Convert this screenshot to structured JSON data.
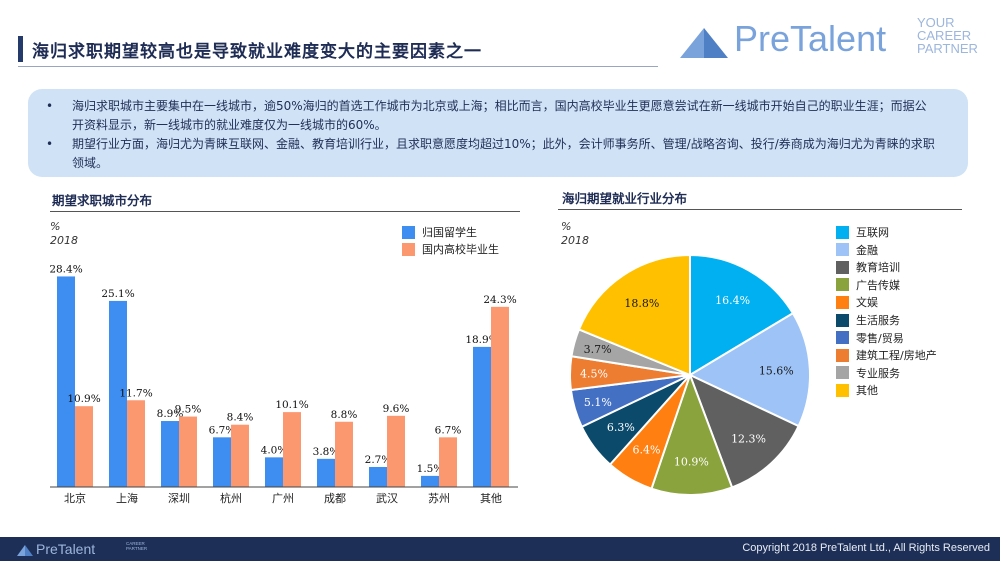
{
  "header": {
    "title": "海归求职期望较高也是导致就业难度变大的主要因素之一",
    "logo_word": "PreTalent",
    "logo_tag": [
      "YOUR",
      "CAREER",
      "PARTNER"
    ]
  },
  "bullets": [
    "海归求职城市主要集中在一线城市，逾50%海归的首选工作城市为北京或上海；相比而言，国内高校毕业生更愿意尝试在新一线城市开始自己的职业生涯；而据公开资料显示，新一线城市的就业难度仅为一线城市的60%。",
    "期望行业方面，海归尤为青睐互联网、金融、教育培训行业，且求职意愿度均超过10%；此外，会计师事务所、管理/战略咨询、投行/券商成为海归尤为青睐的求职领域。"
  ],
  "colors": {
    "returnee": "#3d8ef0",
    "domestic": "#fb9870",
    "brand": "#7aa3dc",
    "navy": "#1e2f57"
  },
  "chart_data": [
    {
      "type": "bar",
      "title": "期望求职城市分布",
      "unit": "%",
      "year": "2018",
      "categories": [
        "北京",
        "上海",
        "深圳",
        "杭州",
        "广州",
        "成都",
        "武汉",
        "苏州",
        "其他"
      ],
      "series": [
        {
          "name": "归国留学生",
          "color": "#3d8ef0",
          "values": [
            28.4,
            25.1,
            8.9,
            6.7,
            4.0,
            3.8,
            2.7,
            1.5,
            18.9
          ]
        },
        {
          "name": "国内高校毕业生",
          "color": "#fb9870",
          "values": [
            10.9,
            11.7,
            9.5,
            8.4,
            10.1,
            8.8,
            9.6,
            6.7,
            24.3
          ]
        }
      ],
      "ylim": [
        0,
        29
      ],
      "legend": "top-right",
      "grid": false
    },
    {
      "type": "pie",
      "title": "海归期望就业行业分布",
      "unit": "%",
      "year": "2018",
      "labels": [
        "互联网",
        "金融",
        "教育培训",
        "广告传媒",
        "文娱",
        "生活服务",
        "零售/贸易",
        "建筑工程/房地产",
        "专业服务",
        "其他"
      ],
      "values": [
        16.4,
        15.6,
        12.3,
        10.9,
        6.4,
        6.3,
        5.1,
        4.5,
        3.7,
        18.8
      ],
      "colors": [
        "#00b0f0",
        "#9dc3f7",
        "#606060",
        "#8aa33c",
        "#ff7f10",
        "#0b4a6b",
        "#4470c4",
        "#ed7d31",
        "#a5a5a5",
        "#ffc000"
      ],
      "legend": "right"
    }
  ],
  "footer": {
    "logo_word": "PreTalent",
    "logo_tag": [
      "CAREER",
      "PARTNER"
    ],
    "copyright": "Copyright 2018 PreTalent Ltd., All Rights Reserved"
  }
}
